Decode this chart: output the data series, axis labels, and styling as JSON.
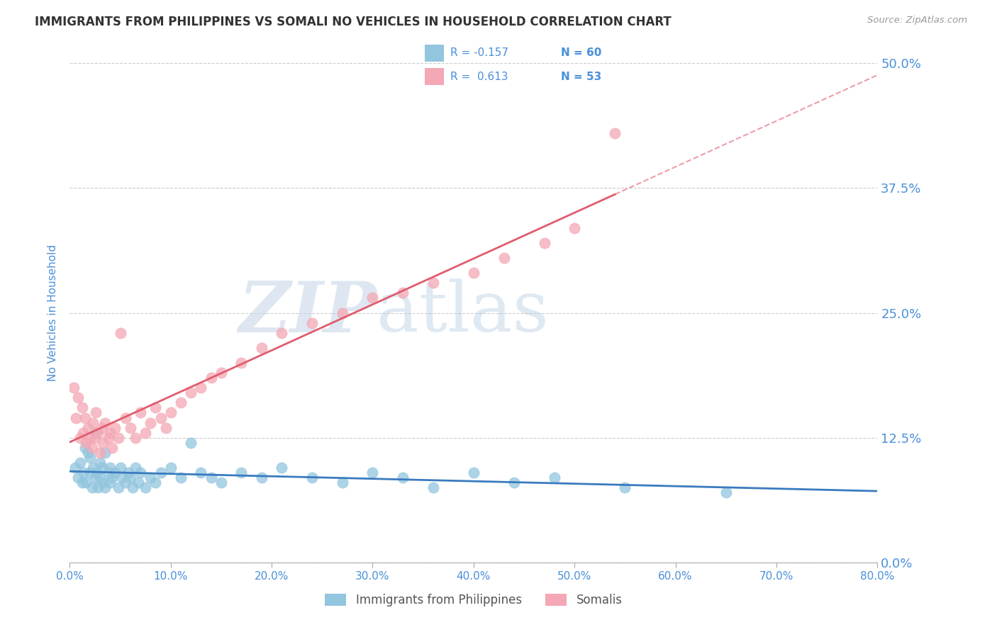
{
  "title": "IMMIGRANTS FROM PHILIPPINES VS SOMALI NO VEHICLES IN HOUSEHOLD CORRELATION CHART",
  "source": "Source: ZipAtlas.com",
  "ylabel": "No Vehicles in Household",
  "xlim": [
    0.0,
    0.8
  ],
  "ylim": [
    0.0,
    0.5
  ],
  "xticks": [
    0.0,
    0.1,
    0.2,
    0.3,
    0.4,
    0.5,
    0.6,
    0.7,
    0.8
  ],
  "yticks": [
    0.0,
    0.125,
    0.25,
    0.375,
    0.5
  ],
  "xtick_labels": [
    "0.0%",
    "10.0%",
    "20.0%",
    "30.0%",
    "40.0%",
    "50.0%",
    "60.0%",
    "70.0%",
    "80.0%"
  ],
  "ytick_labels": [
    "0.0%",
    "12.5%",
    "25.0%",
    "37.5%",
    "50.0%"
  ],
  "blue_color": "#92c5de",
  "pink_color": "#f4a7b4",
  "blue_line_color": "#3a7bbf",
  "pink_line_color": "#e05c6e",
  "R_blue": -0.157,
  "N_blue": 60,
  "R_pink": 0.613,
  "N_pink": 53,
  "legend_label_blue": "Immigrants from Philippines",
  "legend_label_pink": "Somalis",
  "watermark_zip": "ZIP",
  "watermark_atlas": "atlas",
  "title_color": "#333333",
  "axis_label_color": "#4a90d9",
  "tick_label_color": "#4a90d9",
  "background_color": "#ffffff",
  "blue_scatter_x": [
    0.005,
    0.008,
    0.01,
    0.012,
    0.014,
    0.015,
    0.016,
    0.018,
    0.02,
    0.02,
    0.022,
    0.023,
    0.025,
    0.025,
    0.027,
    0.028,
    0.03,
    0.03,
    0.032,
    0.033,
    0.035,
    0.035,
    0.038,
    0.04,
    0.04,
    0.042,
    0.045,
    0.048,
    0.05,
    0.052,
    0.055,
    0.058,
    0.06,
    0.062,
    0.065,
    0.068,
    0.07,
    0.075,
    0.08,
    0.085,
    0.09,
    0.1,
    0.11,
    0.12,
    0.13,
    0.14,
    0.15,
    0.17,
    0.19,
    0.21,
    0.24,
    0.27,
    0.3,
    0.33,
    0.36,
    0.4,
    0.44,
    0.48,
    0.55,
    0.65
  ],
  "blue_scatter_y": [
    0.095,
    0.085,
    0.1,
    0.08,
    0.09,
    0.115,
    0.08,
    0.11,
    0.09,
    0.105,
    0.075,
    0.095,
    0.085,
    0.13,
    0.09,
    0.075,
    0.1,
    0.085,
    0.095,
    0.08,
    0.11,
    0.075,
    0.09,
    0.095,
    0.08,
    0.085,
    0.09,
    0.075,
    0.095,
    0.085,
    0.08,
    0.09,
    0.085,
    0.075,
    0.095,
    0.08,
    0.09,
    0.075,
    0.085,
    0.08,
    0.09,
    0.095,
    0.085,
    0.12,
    0.09,
    0.085,
    0.08,
    0.09,
    0.085,
    0.095,
    0.085,
    0.08,
    0.09,
    0.085,
    0.075,
    0.09,
    0.08,
    0.085,
    0.075,
    0.07
  ],
  "pink_scatter_x": [
    0.004,
    0.006,
    0.008,
    0.01,
    0.012,
    0.013,
    0.015,
    0.016,
    0.018,
    0.02,
    0.022,
    0.023,
    0.025,
    0.026,
    0.028,
    0.03,
    0.032,
    0.033,
    0.035,
    0.038,
    0.04,
    0.042,
    0.045,
    0.048,
    0.05,
    0.055,
    0.06,
    0.065,
    0.07,
    0.075,
    0.08,
    0.085,
    0.09,
    0.095,
    0.1,
    0.11,
    0.12,
    0.13,
    0.14,
    0.15,
    0.17,
    0.19,
    0.21,
    0.24,
    0.27,
    0.3,
    0.33,
    0.36,
    0.4,
    0.43,
    0.47,
    0.5,
    0.54
  ],
  "pink_scatter_y": [
    0.175,
    0.145,
    0.165,
    0.125,
    0.155,
    0.13,
    0.145,
    0.12,
    0.135,
    0.125,
    0.115,
    0.14,
    0.125,
    0.15,
    0.13,
    0.11,
    0.135,
    0.12,
    0.14,
    0.125,
    0.13,
    0.115,
    0.135,
    0.125,
    0.23,
    0.145,
    0.135,
    0.125,
    0.15,
    0.13,
    0.14,
    0.155,
    0.145,
    0.135,
    0.15,
    0.16,
    0.17,
    0.175,
    0.185,
    0.19,
    0.2,
    0.215,
    0.23,
    0.24,
    0.25,
    0.265,
    0.27,
    0.28,
    0.29,
    0.305,
    0.32,
    0.335,
    0.43
  ]
}
